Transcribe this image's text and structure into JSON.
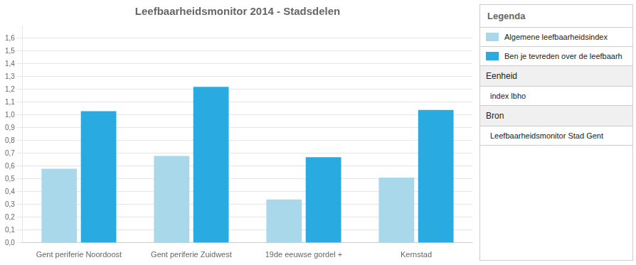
{
  "chart_data": {
    "type": "bar",
    "title": "Leefbaarheidsmonitor 2014 - Stadsdelen",
    "categories": [
      "Gent periferie Noordoost",
      "Gent periferie Zuidwest",
      "19de eeuwse gordel +",
      "Kernstad"
    ],
    "series": [
      {
        "name": "Algemene leefbaarheidsindex",
        "color": "#A8D8EA",
        "values": [
          0.58,
          0.68,
          0.34,
          0.51
        ]
      },
      {
        "name": "Ben je tevreden over de leefbaarh",
        "color": "#29ABE2",
        "values": [
          1.03,
          1.22,
          0.67,
          1.04
        ]
      }
    ],
    "ylim": [
      0.0,
      1.7
    ],
    "yticks": [
      {
        "value": 0.0,
        "label": "0,0"
      },
      {
        "value": 0.1,
        "label": "0,1"
      },
      {
        "value": 0.2,
        "label": "0,2"
      },
      {
        "value": 0.3,
        "label": "0,3"
      },
      {
        "value": 0.4,
        "label": "0,4"
      },
      {
        "value": 0.5,
        "label": "0,5"
      },
      {
        "value": 0.6,
        "label": "0,6"
      },
      {
        "value": 0.7,
        "label": "0,7"
      },
      {
        "value": 0.8,
        "label": "0,8"
      },
      {
        "value": 0.9,
        "label": "0,9"
      },
      {
        "value": 1.0,
        "label": "1,0"
      },
      {
        "value": 1.1,
        "label": "1,1"
      },
      {
        "value": 1.2,
        "label": "1,2"
      },
      {
        "value": 1.3,
        "label": "1,3"
      },
      {
        "value": 1.4,
        "label": "1,4"
      },
      {
        "value": 1.5,
        "label": "1,5"
      },
      {
        "value": 1.6,
        "label": "1,6"
      }
    ],
    "grid": true,
    "legend": "right",
    "legend_title": "Legenda",
    "annotations": [
      "Eenheid",
      "index lbho",
      "Bron",
      "Leefbaarheidsmonitor Stad Gent"
    ]
  }
}
